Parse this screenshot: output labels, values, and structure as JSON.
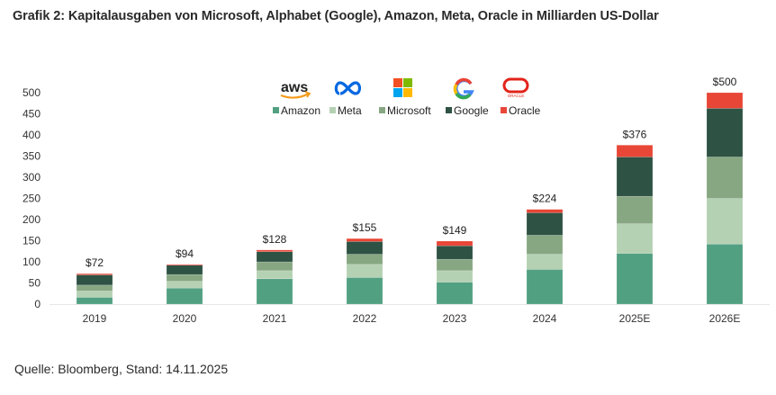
{
  "header": {
    "title": "Grafik 2: Kapitalausgaben von Microsoft, Alphabet (Google), Amazon, Meta, Oracle in Milliarden US-Dollar"
  },
  "footer": {
    "source": "Quelle: Bloomberg, Stand: 14.11.2025"
  },
  "logos": [
    {
      "name": "aws-logo",
      "text": "aws"
    },
    {
      "name": "meta-logo",
      "text": "∞"
    },
    {
      "name": "microsoft-logo",
      "text": ""
    },
    {
      "name": "google-logo",
      "text": "G"
    },
    {
      "name": "oracle-logo",
      "text": "ORACLE"
    }
  ],
  "chart_data": {
    "type": "bar",
    "stacked": true,
    "title": "Grafik 2: Kapitalausgaben von Microsoft, Alphabet (Google), Amazon, Meta, Oracle in Milliarden US-Dollar",
    "xlabel": "",
    "ylabel": "",
    "ylim": [
      0,
      500
    ],
    "yticks": [
      0,
      50,
      100,
      150,
      200,
      250,
      300,
      350,
      400,
      450,
      500
    ],
    "grid": false,
    "legend_position": "top-center",
    "categories": [
      "2019",
      "2020",
      "2021",
      "2022",
      "2023",
      "2024",
      "2025E",
      "2026E"
    ],
    "series": [
      {
        "name": "Amazon",
        "color": "#52a082",
        "values": [
          16,
          38,
          60,
          63,
          52,
          82,
          120,
          142
        ]
      },
      {
        "name": "Meta",
        "color": "#b5d1b3",
        "values": [
          15,
          16,
          19,
          31,
          27,
          36,
          70,
          108
        ]
      },
      {
        "name": "Microsoft",
        "color": "#87a782",
        "values": [
          14,
          16,
          21,
          24,
          27,
          45,
          65,
          98
        ]
      },
      {
        "name": "Google",
        "color": "#2e5243",
        "values": [
          24,
          22,
          24,
          30,
          32,
          53,
          93,
          115
        ]
      },
      {
        "name": "Oracle",
        "color": "#e84637",
        "values": [
          3,
          2,
          4,
          7,
          11,
          8,
          28,
          37
        ]
      }
    ],
    "totals": [
      72,
      94,
      128,
      155,
      149,
      224,
      376,
      500
    ],
    "total_labels": [
      "$72",
      "$94",
      "$128",
      "$155",
      "$149",
      "$224",
      "$376",
      "$500"
    ]
  }
}
